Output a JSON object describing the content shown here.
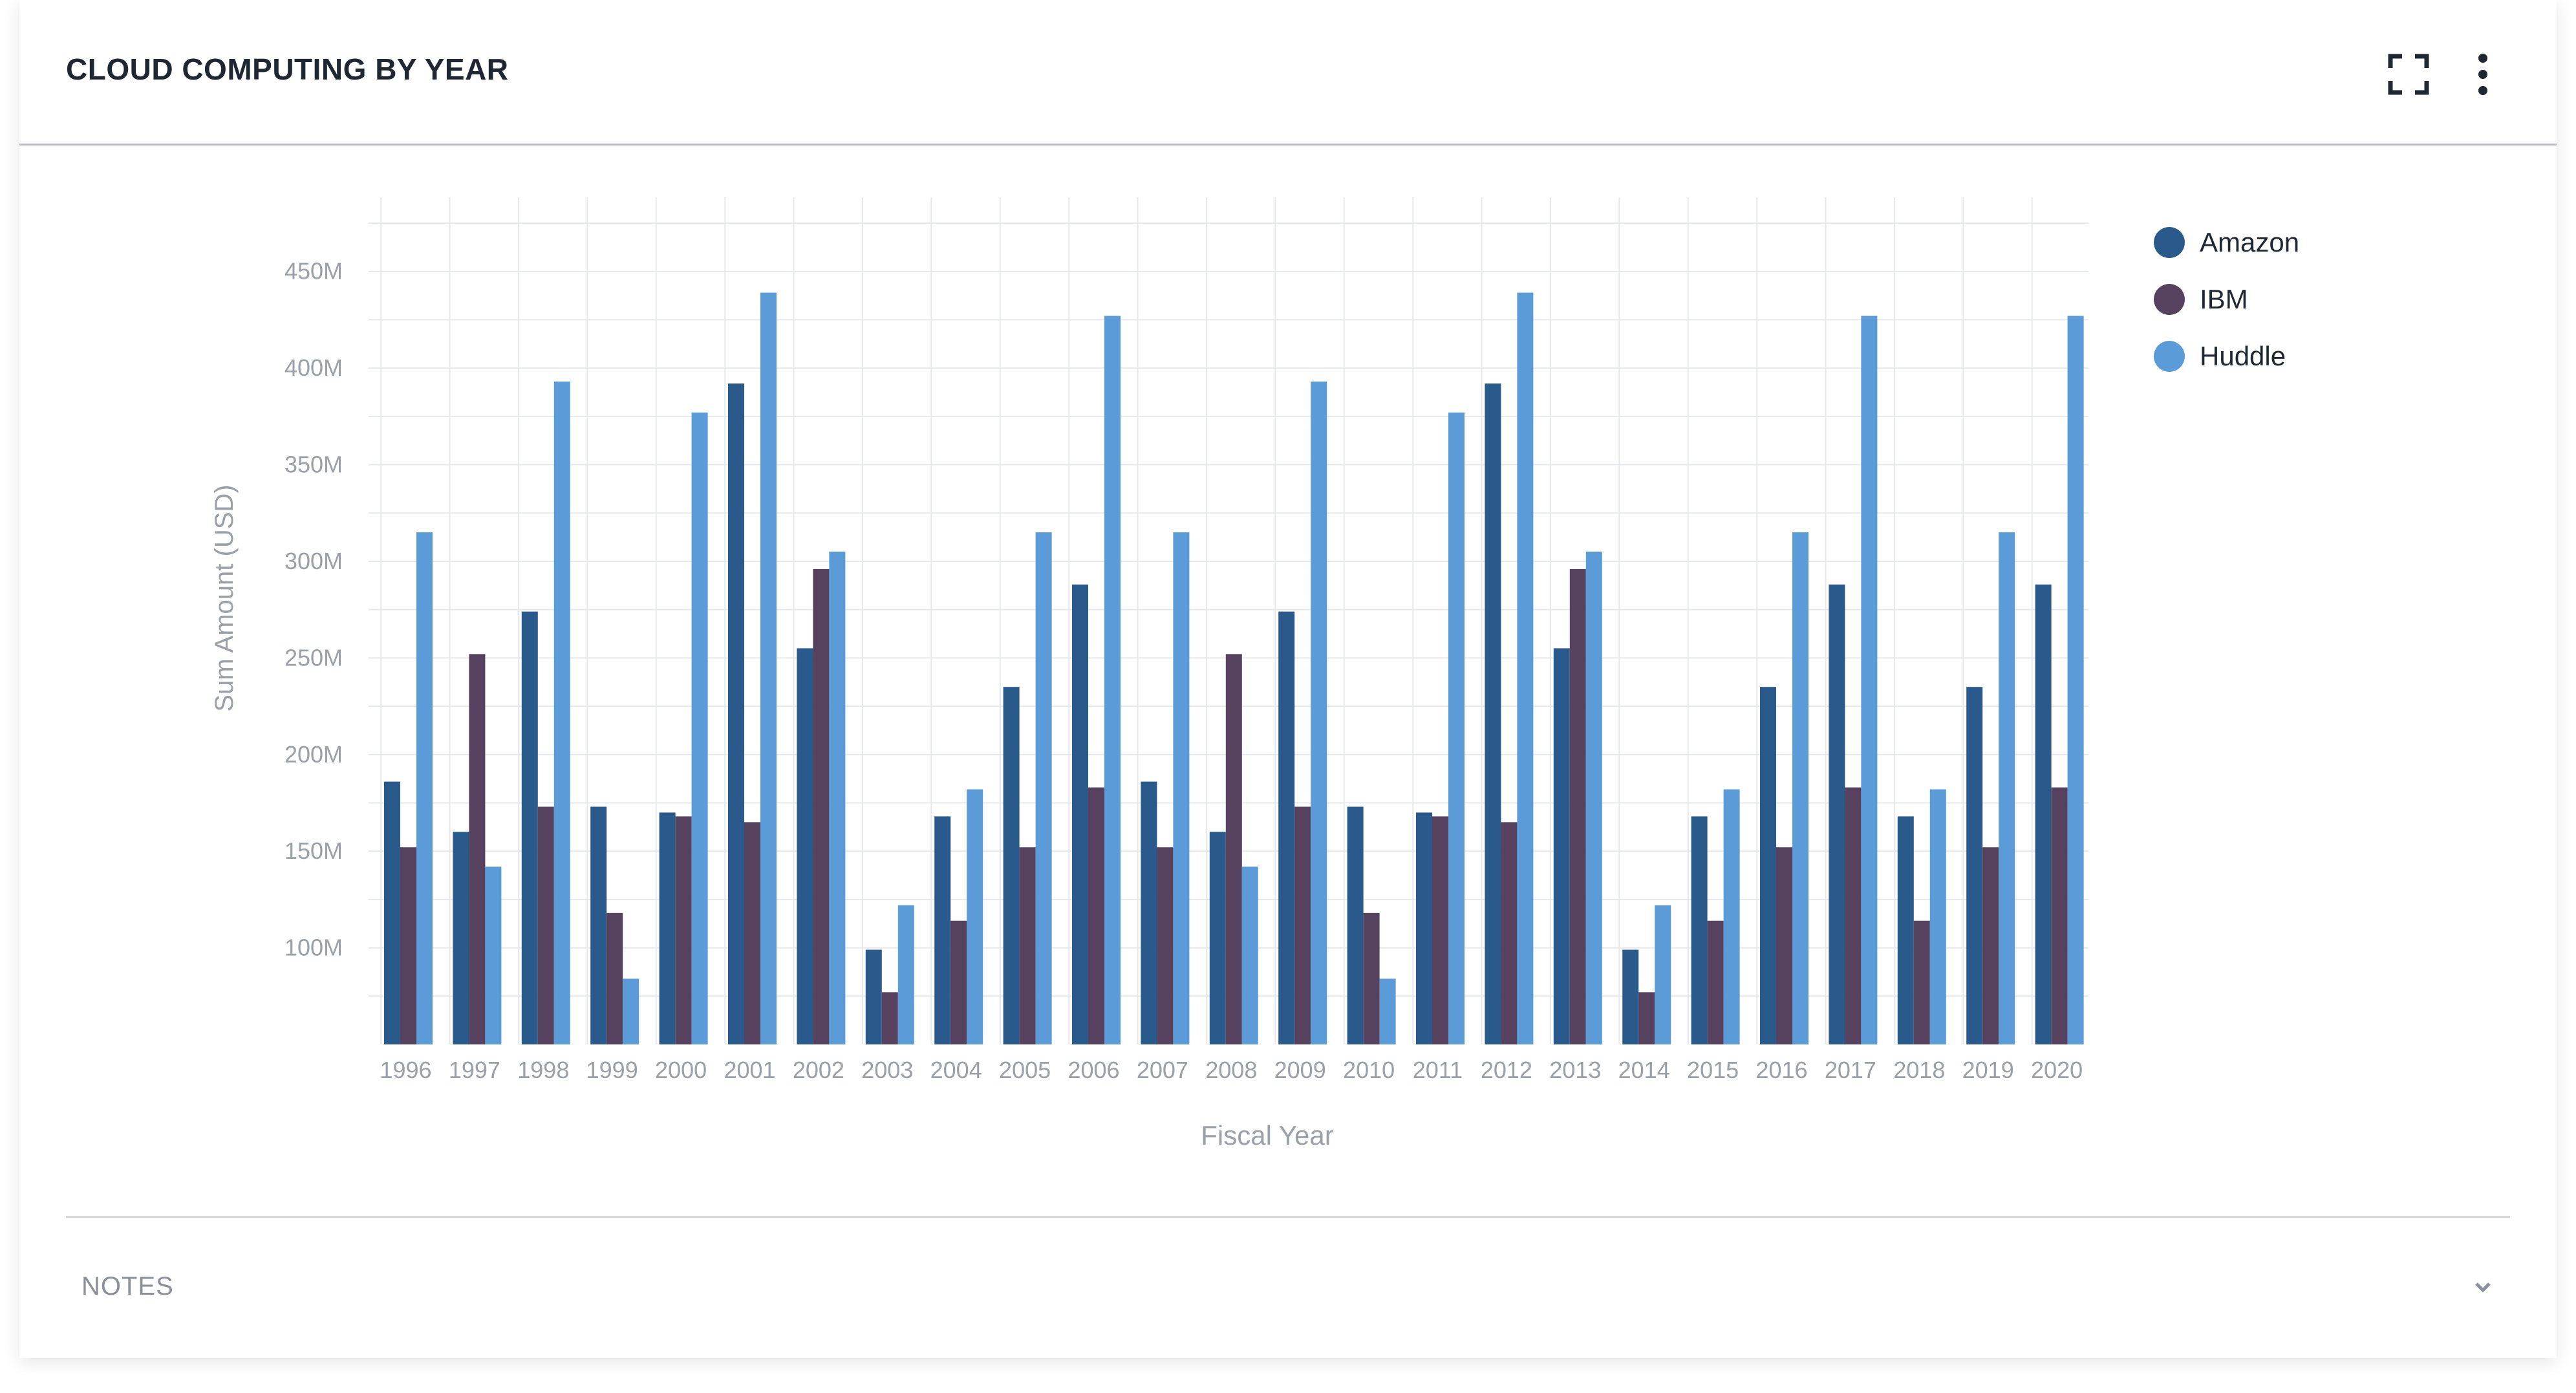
{
  "header": {
    "title": "CLOUD COMPUTING BY YEAR",
    "fullscreen_icon": "expand-icon",
    "menu_icon": "more-vertical-icon"
  },
  "notes": {
    "label": "NOTES",
    "chevron_icon": "chevron-down-icon"
  },
  "chart_data": {
    "type": "bar",
    "title": "",
    "xlabel": "Fiscal Year",
    "ylabel": "Sum Amount (USD)",
    "ylim": [
      50,
      475
    ],
    "yticks": [
      100,
      150,
      200,
      250,
      300,
      350,
      400,
      450
    ],
    "ytick_labels": [
      "100M",
      "150M",
      "200M",
      "250M",
      "300M",
      "350M",
      "400M",
      "450M"
    ],
    "grid": true,
    "legend_position": "top-right",
    "categories": [
      "1996",
      "1997",
      "1998",
      "1999",
      "2000",
      "2001",
      "2002",
      "2003",
      "2004",
      "2005",
      "2006",
      "2007",
      "2008",
      "2009",
      "2010",
      "2011",
      "2012",
      "2013",
      "2014",
      "2015",
      "2016",
      "2017",
      "2018",
      "2019",
      "2020"
    ],
    "series": [
      {
        "name": "Amazon",
        "color": "#2a5a8c",
        "values": [
          186,
          160,
          274,
          173,
          170,
          392,
          255,
          99,
          168,
          235,
          288,
          186,
          160,
          274,
          173,
          170,
          392,
          255,
          99,
          168,
          235,
          288,
          168,
          235,
          288
        ]
      },
      {
        "name": "IBM",
        "color": "#56415f",
        "values": [
          152,
          252,
          173,
          118,
          168,
          165,
          296,
          77,
          114,
          152,
          183,
          152,
          252,
          173,
          118,
          168,
          165,
          296,
          77,
          114,
          152,
          183,
          114,
          152,
          183
        ]
      },
      {
        "name": "Huddle",
        "color": "#5b9bd7",
        "values": [
          315,
          142,
          393,
          84,
          377,
          439,
          305,
          122,
          182,
          315,
          427,
          315,
          142,
          393,
          84,
          377,
          439,
          305,
          122,
          182,
          315,
          427,
          182,
          315,
          427
        ]
      }
    ]
  }
}
